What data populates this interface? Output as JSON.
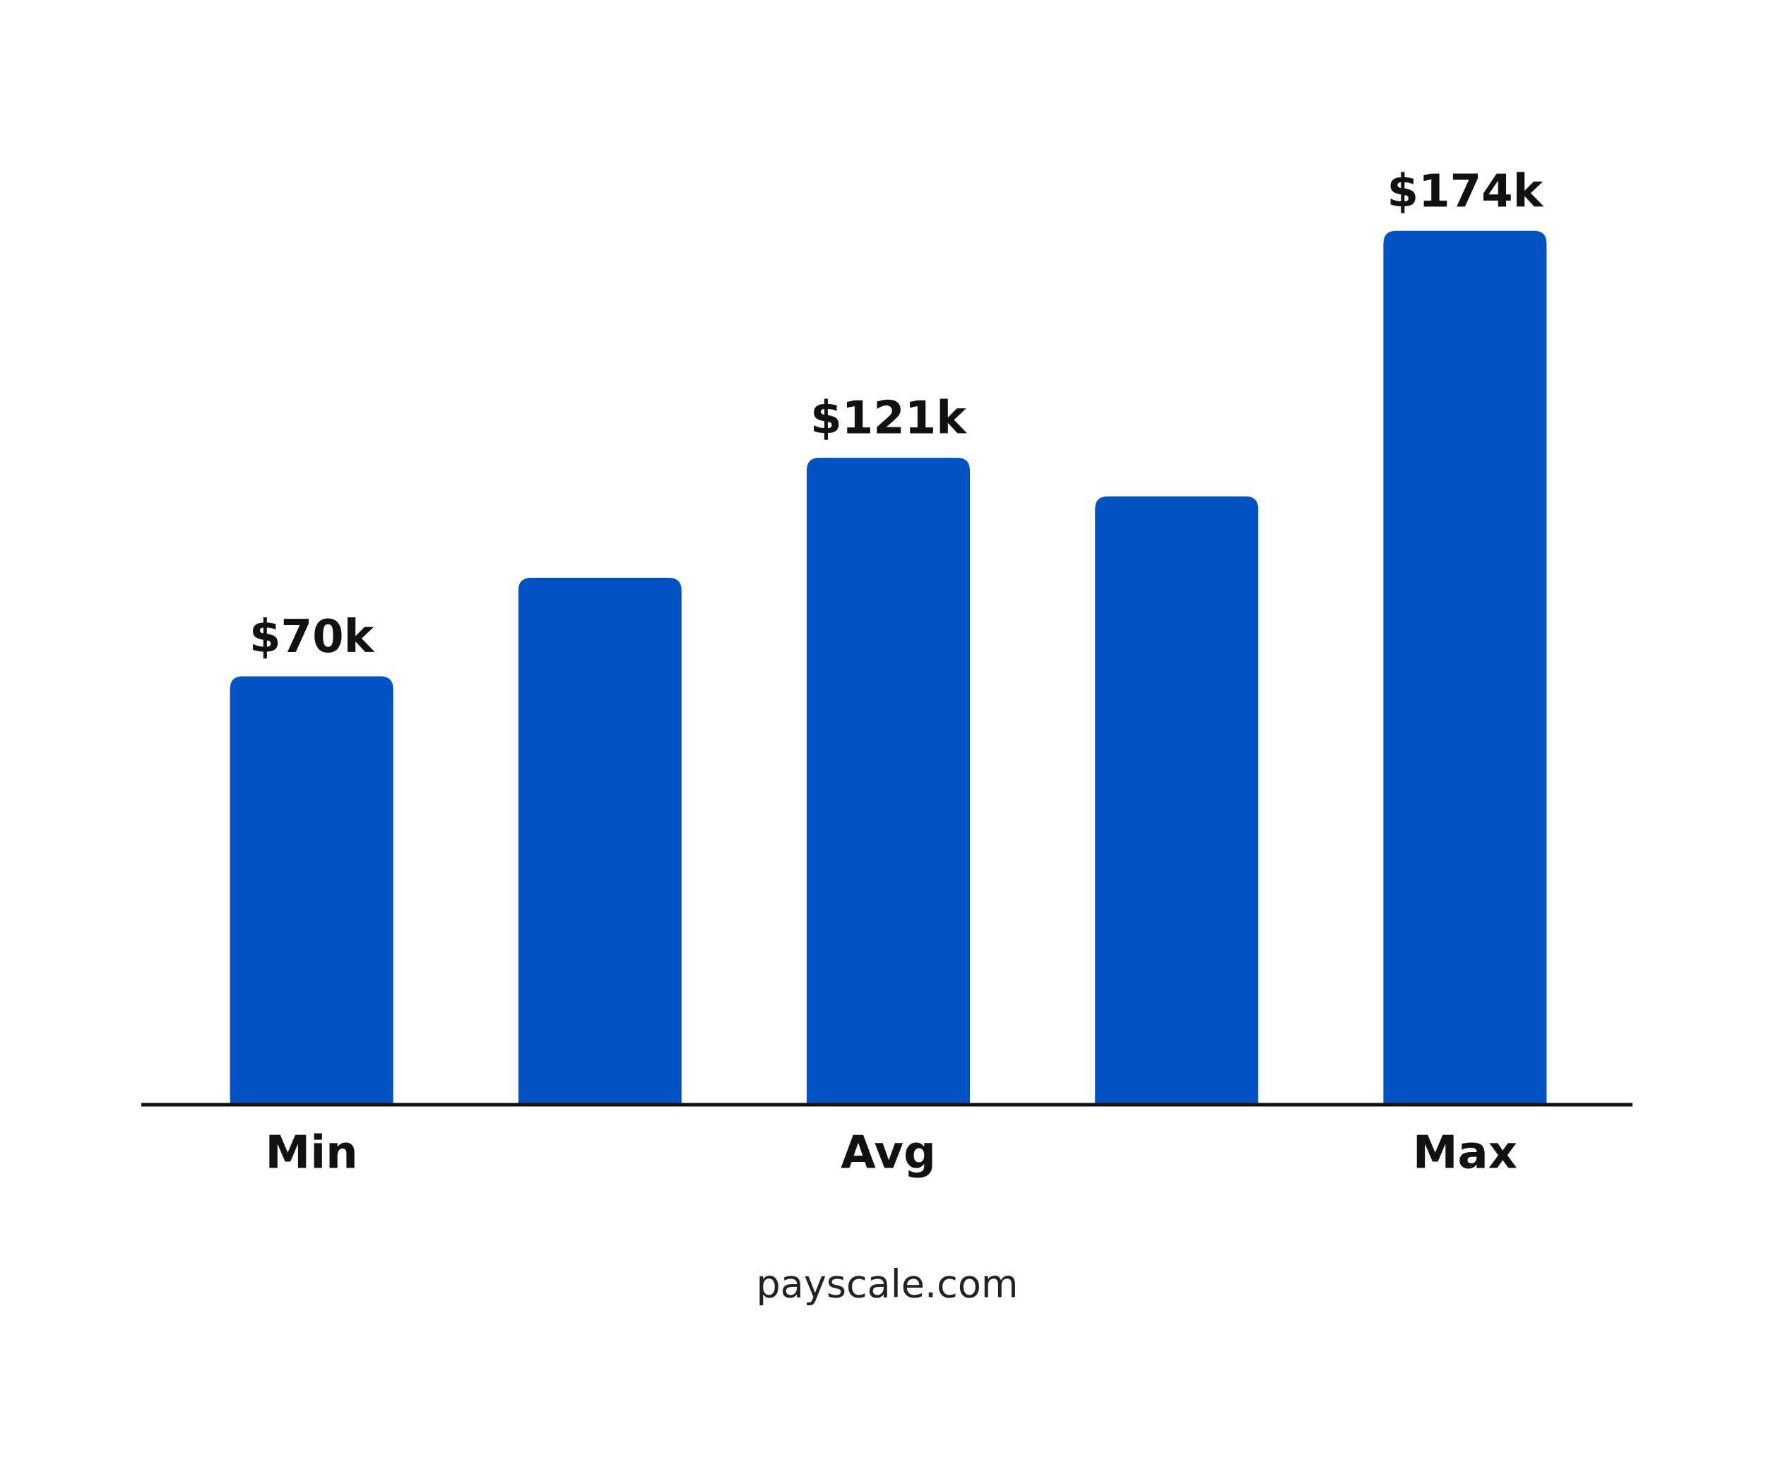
{
  "chart_data": {
    "type": "bar",
    "categories": [
      "Min",
      null,
      "Avg",
      null,
      "Max"
    ],
    "values": [
      70,
      93,
      121,
      112,
      174
    ],
    "value_labels": [
      "$70k",
      null,
      "$121k",
      null,
      "$174k"
    ],
    "color": "#0352c1",
    "ylim": [
      -30,
      185
    ],
    "source": "payscale.com"
  }
}
